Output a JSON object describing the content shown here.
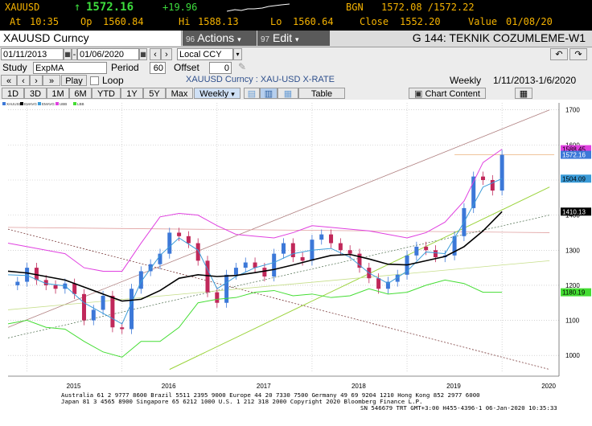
{
  "quote": {
    "ticker": "XAUUSD",
    "arrow": "↑",
    "last": "1572.16",
    "change": "+19.96",
    "time_label": "At",
    "time": "10:35",
    "open_label": "Op",
    "open": "1560.84",
    "high_label": "Hi",
    "high": "1588.13",
    "low_label": "Lo",
    "low": "1560.64",
    "bgn_label": "BGN",
    "bid_ask": "1572.08 /1572.22",
    "close_label": "Close",
    "close": "1552.20",
    "value_label": "Value",
    "value_date": "01/08/20"
  },
  "menubar": {
    "security": "XAUUSD Curncy",
    "actions_num": "96",
    "actions": "Actions",
    "edit_num": "97",
    "edit": "Edit",
    "title": "G 144: TEKNIK COZUMLEME-W1"
  },
  "controls": {
    "start_date": "01/11/2013",
    "end_date": "01/06/2020",
    "currency": "Local CCY",
    "study_label": "Study",
    "study": "ExpMA",
    "period_label": "Period",
    "period": "60",
    "offset_label": "Offset",
    "offset": "0",
    "play": "Play",
    "loop": "Loop",
    "chart_title": "XAUUSD Curncy : XAU-USD X-RATE",
    "frequency_label": "Weekly",
    "range_text": "1/11/2013-1/6/2020",
    "ranges": [
      "1D",
      "3D",
      "1M",
      "6M",
      "YTD",
      "1Y",
      "5Y",
      "Max"
    ],
    "freq_select": "Weekly",
    "table": "Table",
    "chart_content": "Chart Content"
  },
  "legend": {
    "items": [
      "XAUUSD",
      "EMAVG",
      "EMAVG",
      "UBB",
      "LBB"
    ]
  },
  "colors": {
    "quote_yellow": "#f6b300",
    "quote_green": "#3ddc3d",
    "up_candle": "#3c78d8",
    "down_candle": "#c0285a",
    "ema_fast": "#3a9bd8",
    "ema_slow": "#000000",
    "upper_band": "#e040e0",
    "lower_band": "#44dd33"
  },
  "footer": {
    "line1": "Australia 61 2 9777 8600  Brazil 5511 2395 9000  Europe 44 20 7330 7500  Germany 49 69 9204 1210  Hong Kong 852 2977 6000",
    "line2": "Japan 81 3 4565 8900        Singapore 65 6212 1000        U.S. 1 212 318 2000          Copyright 2020 Bloomberg Finance L.P.",
    "line3": "SN 546679 TRT  GMT+3:00 H455-4396-1 06-Jan-2020 10:35:33"
  },
  "chart_data": {
    "type": "line",
    "frequency": "weekly",
    "x_ticks": [
      "2015",
      "2016",
      "2017",
      "2018",
      "2019",
      "2020"
    ],
    "y_ticks": [
      1000,
      1100,
      1200,
      1300,
      1400,
      1500,
      1600,
      1700
    ],
    "ylim": [
      950,
      1720
    ],
    "axis_labels": [
      {
        "label": "1588.45",
        "value": 1588,
        "color": "#e040e0"
      },
      {
        "label": "1572.16",
        "value": 1572,
        "color": "#3c78d8"
      },
      {
        "label": "1504.09",
        "value": 1504,
        "color": "#3a9bd8"
      },
      {
        "label": "1410.13",
        "value": 1410,
        "color": "#000000"
      },
      {
        "label": "1180.19",
        "value": 1180,
        "color": "#44dd33"
      }
    ],
    "series": [
      {
        "name": "XAUUSD",
        "color": "#3c78d8",
        "x": [
          2014.8,
          2014.9,
          2015.0,
          2015.1,
          2015.2,
          2015.3,
          2015.4,
          2015.5,
          2015.6,
          2015.7,
          2015.8,
          2015.9,
          2016.0,
          2016.1,
          2016.2,
          2016.3,
          2016.4,
          2016.5,
          2016.6,
          2016.7,
          2016.8,
          2016.9,
          2017.0,
          2017.1,
          2017.2,
          2017.3,
          2017.4,
          2017.5,
          2017.6,
          2017.7,
          2017.8,
          2017.9,
          2018.0,
          2018.1,
          2018.2,
          2018.3,
          2018.4,
          2018.5,
          2018.6,
          2018.7,
          2018.8,
          2018.9,
          2019.0,
          2019.1,
          2019.2,
          2019.3,
          2019.4,
          2019.5,
          2019.6,
          2019.7,
          2019.8,
          2019.9,
          2020.0
        ],
        "values": [
          1200,
          1210,
          1250,
          1215,
          1200,
          1190,
          1205,
          1175,
          1100,
          1130,
          1170,
          1080,
          1075,
          1190,
          1240,
          1260,
          1290,
          1350,
          1340,
          1320,
          1270,
          1180,
          1150,
          1230,
          1250,
          1265,
          1250,
          1225,
          1290,
          1320,
          1280,
          1270,
          1330,
          1345,
          1320,
          1300,
          1290,
          1250,
          1220,
          1190,
          1210,
          1230,
          1285,
          1310,
          1300,
          1280,
          1285,
          1340,
          1420,
          1510,
          1500,
          1470,
          1572
        ]
      },
      {
        "name": "EMAVG",
        "color": "#3a9bd8",
        "x": [
          2014.8,
          2015.0,
          2015.2,
          2015.4,
          2015.6,
          2015.8,
          2016.0,
          2016.2,
          2016.4,
          2016.6,
          2016.8,
          2017.0,
          2017.2,
          2017.4,
          2017.6,
          2017.8,
          2018.0,
          2018.2,
          2018.4,
          2018.6,
          2018.8,
          2019.0,
          2019.2,
          2019.4,
          2019.6,
          2019.8,
          2020.0
        ],
        "values": [
          1230,
          1228,
          1205,
          1198,
          1150,
          1120,
          1090,
          1210,
          1285,
          1335,
          1300,
          1190,
          1225,
          1250,
          1265,
          1290,
          1300,
          1305,
          1280,
          1235,
          1205,
          1240,
          1295,
          1290,
          1380,
          1480,
          1504
        ]
      },
      {
        "name": "EMAVG",
        "color": "#000000",
        "x": [
          2014.8,
          2015.0,
          2015.2,
          2015.4,
          2015.6,
          2015.8,
          2016.0,
          2016.2,
          2016.4,
          2016.6,
          2016.8,
          2017.0,
          2017.2,
          2017.4,
          2017.6,
          2017.8,
          2018.0,
          2018.2,
          2018.4,
          2018.6,
          2018.8,
          2019.0,
          2019.2,
          2019.4,
          2019.6,
          2019.8,
          2020.0
        ],
        "values": [
          1240,
          1235,
          1225,
          1215,
          1195,
          1175,
          1155,
          1160,
          1185,
          1220,
          1230,
          1225,
          1228,
          1236,
          1245,
          1258,
          1272,
          1285,
          1288,
          1275,
          1260,
          1258,
          1270,
          1282,
          1310,
          1355,
          1410
        ]
      },
      {
        "name": "UBB",
        "color": "#e040e0",
        "x": [
          2014.8,
          2015.0,
          2015.2,
          2015.4,
          2015.6,
          2015.8,
          2016.0,
          2016.2,
          2016.4,
          2016.6,
          2016.8,
          2017.0,
          2017.2,
          2017.4,
          2017.6,
          2017.8,
          2018.0,
          2018.2,
          2018.4,
          2018.6,
          2018.8,
          2019.0,
          2019.2,
          2019.4,
          2019.6,
          2019.8,
          2020.0
        ],
        "values": [
          1320,
          1310,
          1300,
          1290,
          1250,
          1240,
          1240,
          1320,
          1395,
          1405,
          1400,
          1370,
          1345,
          1340,
          1335,
          1350,
          1370,
          1365,
          1360,
          1355,
          1345,
          1335,
          1350,
          1380,
          1440,
          1550,
          1588
        ]
      },
      {
        "name": "LBB",
        "color": "#44dd33",
        "x": [
          2014.8,
          2015.0,
          2015.2,
          2015.4,
          2015.6,
          2015.8,
          2016.0,
          2016.2,
          2016.4,
          2016.6,
          2016.8,
          2017.0,
          2017.2,
          2017.4,
          2017.6,
          2017.8,
          2018.0,
          2018.2,
          2018.4,
          2018.6,
          2018.8,
          2019.0,
          2019.2,
          2019.4,
          2019.6,
          2019.8,
          2020.0
        ],
        "values": [
          1090,
          1100,
          1080,
          1075,
          1040,
          1010,
          995,
          1040,
          1040,
          1080,
          1150,
          1160,
          1165,
          1180,
          1185,
          1170,
          1175,
          1165,
          1170,
          1190,
          1175,
          1180,
          1200,
          1215,
          1205,
          1180,
          1180
        ]
      }
    ]
  }
}
